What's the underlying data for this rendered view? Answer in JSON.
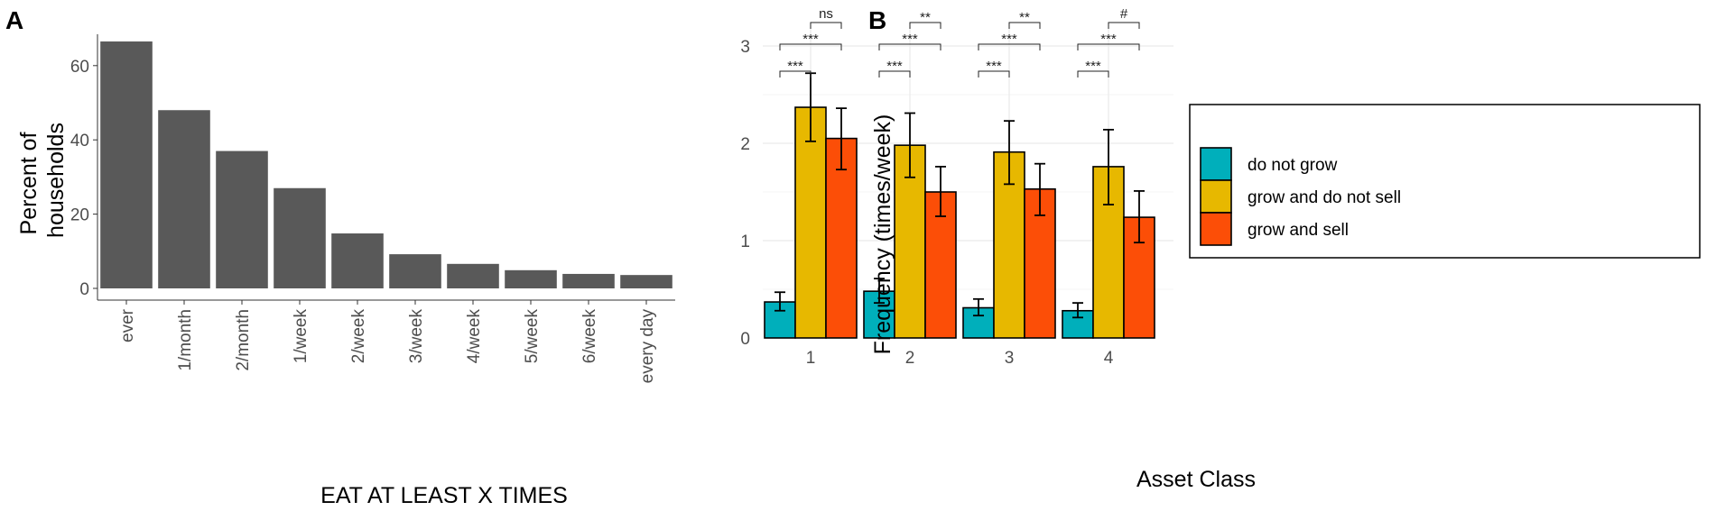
{
  "panels": {
    "a_label": "A",
    "b_label": "B"
  },
  "chart_data": [
    {
      "type": "bar",
      "panel": "A",
      "categories": [
        "ever",
        "1/month",
        "2/month",
        "1/week",
        "2/week",
        "3/week",
        "4/week",
        "5/week",
        "6/week",
        "every day"
      ],
      "values": [
        66.5,
        48,
        37,
        27,
        14.8,
        9.2,
        6.6,
        4.9,
        3.9,
        3.6
      ],
      "title": "",
      "xlabel": "EAT AT LEAST X TIMES",
      "ylabel_lines": [
        "Percent of",
        "households"
      ],
      "yticks": [
        0,
        20,
        40,
        60
      ],
      "ylim": [
        0,
        70
      ],
      "bar_color": "#595959",
      "grid": false
    },
    {
      "type": "bar",
      "panel": "B",
      "grouped": true,
      "categories": [
        "1",
        "2",
        "3",
        "4"
      ],
      "series": [
        {
          "name": "do not grow",
          "color": "#00AFBB",
          "values": [
            0.37,
            0.48,
            0.31,
            0.28
          ],
          "err_low": [
            0.28,
            0.36,
            0.23,
            0.21
          ],
          "err_high": [
            0.47,
            0.61,
            0.4,
            0.36
          ]
        },
        {
          "name": "grow and do not sell",
          "color": "#E7B800",
          "values": [
            2.37,
            1.98,
            1.91,
            1.76
          ],
          "err_low": [
            2.02,
            1.65,
            1.58,
            1.37
          ],
          "err_high": [
            2.72,
            2.31,
            2.23,
            2.14
          ]
        },
        {
          "name": "grow and sell",
          "color": "#FC4E07",
          "values": [
            2.05,
            1.5,
            1.53,
            1.24
          ],
          "err_low": [
            1.73,
            1.25,
            1.26,
            0.98
          ],
          "err_high": [
            2.36,
            1.76,
            1.79,
            1.51
          ]
        }
      ],
      "xlabel": "Asset Class",
      "ylabel": "Frequency (times/week)",
      "yticks": [
        0,
        1,
        2,
        3
      ],
      "ylim": [
        0,
        3.05
      ],
      "grid": true,
      "legend": {
        "position": "right",
        "items": [
          "do not grow",
          "grow and do not sell",
          "grow and sell"
        ]
      },
      "significance": [
        {
          "group": "1",
          "from": "grow and do not sell",
          "to": "grow and sell",
          "label": "ns"
        },
        {
          "group": "1",
          "from": "do not grow",
          "to": "grow and sell",
          "label": "***"
        },
        {
          "group": "1",
          "from": "do not grow",
          "to": "grow and do not sell",
          "label": "***"
        },
        {
          "group": "2",
          "from": "grow and do not sell",
          "to": "grow and sell",
          "label": "**"
        },
        {
          "group": "2",
          "from": "do not grow",
          "to": "grow and sell",
          "label": "***"
        },
        {
          "group": "2",
          "from": "do not grow",
          "to": "grow and do not sell",
          "label": "***"
        },
        {
          "group": "3",
          "from": "grow and do not sell",
          "to": "grow and sell",
          "label": "**"
        },
        {
          "group": "3",
          "from": "do not grow",
          "to": "grow and sell",
          "label": "***"
        },
        {
          "group": "3",
          "from": "do not grow",
          "to": "grow and do not sell",
          "label": "***"
        },
        {
          "group": "4",
          "from": "grow and do not sell",
          "to": "grow and sell",
          "label": "#"
        },
        {
          "group": "4",
          "from": "do not grow",
          "to": "grow and sell",
          "label": "***"
        },
        {
          "group": "4",
          "from": "do not grow",
          "to": "grow and do not sell",
          "label": "***"
        }
      ]
    }
  ]
}
